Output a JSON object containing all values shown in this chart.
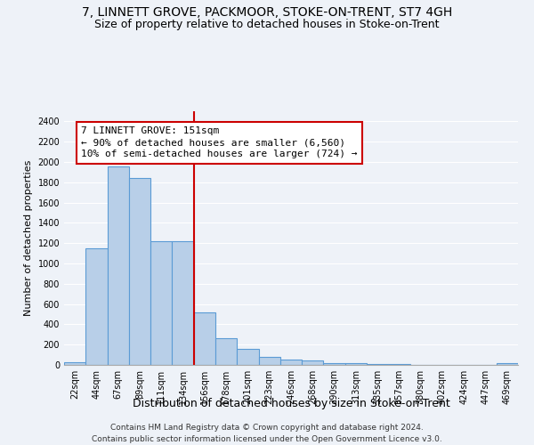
{
  "title": "7, LINNETT GROVE, PACKMOOR, STOKE-ON-TRENT, ST7 4GH",
  "subtitle": "Size of property relative to detached houses in Stoke-on-Trent",
  "xlabel": "Distribution of detached houses by size in Stoke-on-Trent",
  "ylabel": "Number of detached properties",
  "footer_lines": [
    "Contains HM Land Registry data © Crown copyright and database right 2024.",
    "Contains public sector information licensed under the Open Government Licence v3.0."
  ],
  "categories": [
    "22sqm",
    "44sqm",
    "67sqm",
    "89sqm",
    "111sqm",
    "134sqm",
    "156sqm",
    "178sqm",
    "201sqm",
    "223sqm",
    "246sqm",
    "268sqm",
    "290sqm",
    "313sqm",
    "335sqm",
    "357sqm",
    "380sqm",
    "402sqm",
    "424sqm",
    "447sqm",
    "469sqm"
  ],
  "values": [
    30,
    1150,
    1960,
    1840,
    1220,
    1220,
    520,
    265,
    155,
    80,
    50,
    45,
    20,
    18,
    10,
    8,
    0,
    0,
    0,
    0,
    20
  ],
  "bar_color": "#b8cfe8",
  "bar_edge_color": "#5b9bd5",
  "vline_x_index": 5.5,
  "vline_color": "#cc0000",
  "annotation_line1": "7 LINNETT GROVE: 151sqm",
  "annotation_line2": "← 90% of detached houses are smaller (6,560)",
  "annotation_line3": "10% of semi-detached houses are larger (724) →",
  "annotation_box_color": "#ffffff",
  "annotation_box_edge_color": "#cc0000",
  "ylim": [
    0,
    2500
  ],
  "yticks": [
    0,
    200,
    400,
    600,
    800,
    1000,
    1200,
    1400,
    1600,
    1800,
    2000,
    2200,
    2400
  ],
  "background_color": "#eef2f8",
  "grid_color": "#ffffff",
  "title_fontsize": 10,
  "subtitle_fontsize": 9,
  "xlabel_fontsize": 9,
  "ylabel_fontsize": 8,
  "tick_fontsize": 7,
  "annotation_fontsize": 8,
  "footer_fontsize": 6.5
}
